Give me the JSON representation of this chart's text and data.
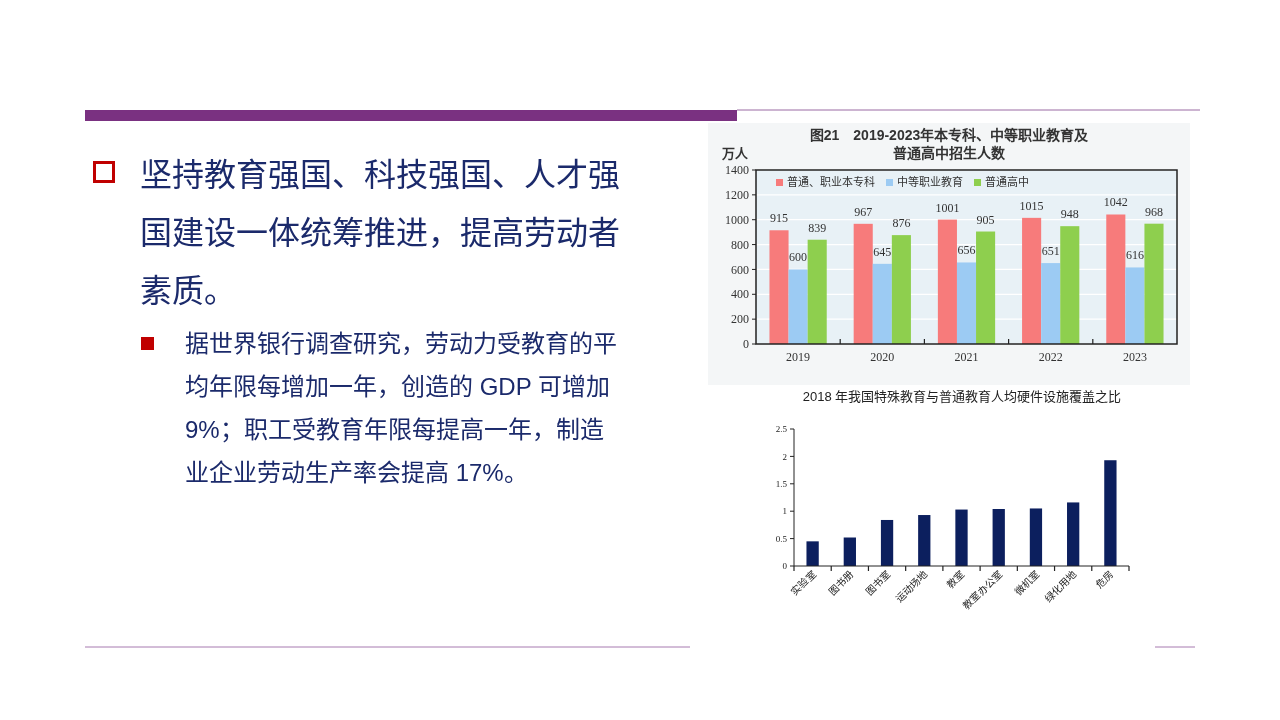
{
  "chart_data": [
    {
      "type": "other",
      "title": "坚持教育强国、科技强国、人才强国建设一体统筹推进，提高劳动者素质。",
      "annotations": [
        "据世界银行调查研究，劳动力受教育的平均年限每增加一年，创造的 GDP 可增加 9%；职工受教育年限每提高一年，制造业企业劳动生产率会提高 17%。"
      ]
    },
    {
      "type": "bar",
      "title": "图21　2019-2023年本专科、中等职业教育及普通高中招生人数",
      "ylabel": "万人",
      "categories": [
        "2019",
        "2020",
        "2021",
        "2022",
        "2023"
      ],
      "series": [
        {
          "name": "普通、职业本专科",
          "color": "#f77b7b",
          "values": [
            915,
            967,
            1001,
            1015,
            1042
          ]
        },
        {
          "name": "中等职业教育",
          "color": "#9ccbf3",
          "values": [
            600,
            645,
            656,
            651,
            616
          ]
        },
        {
          "name": "普通高中",
          "color": "#8ecf4e",
          "values": [
            839,
            876,
            905,
            948,
            968
          ]
        }
      ],
      "ylim": [
        0,
        1400
      ],
      "yticks": [
        0,
        200,
        400,
        600,
        800,
        1000,
        1200,
        1400
      ],
      "grid": "y",
      "legend": "top left",
      "data_labels": true
    },
    {
      "type": "bar",
      "title": "2018 年我国特殊教育与普通教育人均硬件设施覆盖之比",
      "categories": [
        "实验室",
        "图书册",
        "图书室",
        "运动场地",
        "教室",
        "教室办公室",
        "微机室",
        "绿化用地",
        "危房"
      ],
      "values": [
        0.45,
        0.52,
        0.84,
        0.93,
        1.03,
        1.04,
        1.05,
        1.16,
        1.93
      ],
      "color": "#0c1f5e",
      "ylim": [
        0,
        2.5
      ],
      "yticks": [
        0,
        0.5,
        1,
        1.5,
        2,
        2.5
      ]
    }
  ]
}
